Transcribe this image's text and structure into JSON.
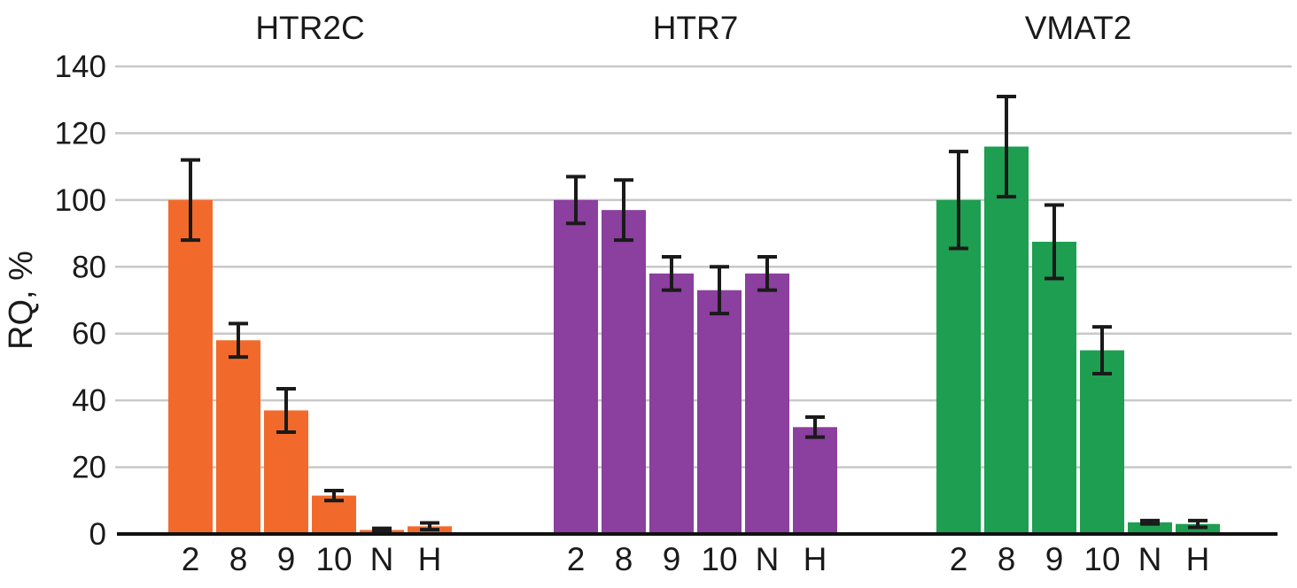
{
  "chart_data": {
    "type": "bar",
    "title": "",
    "ylabel": "RQ, %",
    "xlabel": "",
    "ylim": [
      0,
      140
    ],
    "yticks": [
      0,
      20,
      40,
      60,
      80,
      100,
      120,
      140
    ],
    "grid": true,
    "legend_position": "none",
    "categories": [
      "2",
      "8",
      "9",
      "10",
      "N",
      "H"
    ],
    "series": [
      {
        "name": "HTR2C",
        "color": "#F26A2B",
        "values": [
          100,
          58,
          37,
          11.5,
          1.2,
          2.3
        ],
        "errors": [
          12,
          5,
          6.5,
          1.5,
          0.5,
          1
        ]
      },
      {
        "name": "HTR7",
        "color": "#8B3F9E",
        "values": [
          100,
          97,
          78,
          73,
          78,
          32
        ],
        "errors": [
          7,
          9,
          5,
          7,
          5,
          3
        ]
      },
      {
        "name": "VMAT2",
        "color": "#1E9E50",
        "values": [
          100,
          116,
          87.5,
          55,
          3.5,
          3
        ],
        "errors": [
          14.5,
          15,
          11,
          7,
          0.5,
          1
        ]
      }
    ]
  },
  "colors": {
    "grid": "#c8c8c8",
    "axis": "#111111",
    "error_bar": "#1a1a1a",
    "text": "#1a1a1a",
    "background": "#ffffff"
  }
}
